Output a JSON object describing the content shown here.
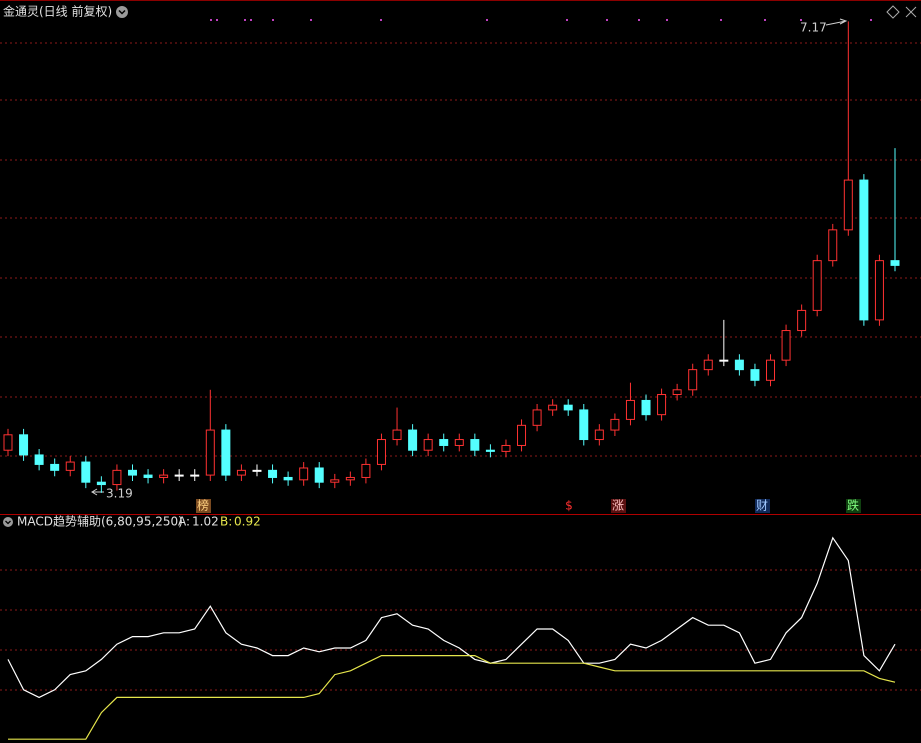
{
  "chart_data": [
    {
      "type": "candlestick",
      "title": "金通灵(日线 前复权)",
      "open": [
        3.55,
        3.68,
        3.51,
        3.43,
        3.38,
        3.45,
        3.28,
        3.26,
        3.38,
        3.34,
        3.32,
        3.34,
        3.34,
        3.34,
        3.72,
        3.34,
        3.38,
        3.38,
        3.32,
        3.3,
        3.4,
        3.28,
        3.3,
        3.32,
        3.43,
        3.64,
        3.72,
        3.55,
        3.64,
        3.59,
        3.64,
        3.55,
        3.54,
        3.59,
        3.76,
        3.89,
        3.93,
        3.89,
        3.64,
        3.72,
        3.81,
        3.97,
        3.85,
        4.02,
        4.06,
        4.23,
        4.31,
        4.31,
        4.23,
        4.14,
        4.31,
        4.56,
        4.73,
        5.15,
        5.41,
        5.83,
        4.65,
        5.15
      ],
      "high": [
        3.73,
        3.73,
        3.56,
        3.48,
        3.5,
        3.5,
        3.33,
        3.43,
        3.43,
        3.39,
        3.39,
        3.39,
        3.39,
        4.06,
        3.77,
        3.43,
        3.43,
        3.43,
        3.37,
        3.45,
        3.45,
        3.35,
        3.37,
        3.48,
        3.69,
        3.91,
        3.77,
        3.69,
        3.69,
        3.69,
        3.69,
        3.6,
        3.64,
        3.81,
        3.94,
        3.98,
        3.98,
        3.94,
        3.77,
        3.86,
        4.12,
        4.02,
        4.07,
        4.11,
        4.28,
        4.36,
        4.65,
        4.36,
        4.28,
        4.36,
        4.61,
        4.78,
        5.2,
        5.46,
        7.17,
        5.88,
        5.2,
        6.1
      ],
      "low": [
        3.5,
        3.46,
        3.38,
        3.33,
        3.33,
        3.23,
        3.19,
        3.21,
        3.29,
        3.27,
        3.27,
        3.29,
        3.29,
        3.29,
        3.29,
        3.29,
        3.33,
        3.27,
        3.25,
        3.25,
        3.23,
        3.23,
        3.25,
        3.27,
        3.38,
        3.59,
        3.5,
        3.5,
        3.54,
        3.54,
        3.5,
        3.49,
        3.49,
        3.54,
        3.71,
        3.84,
        3.84,
        3.59,
        3.59,
        3.67,
        3.76,
        3.8,
        3.8,
        3.97,
        4.01,
        4.18,
        4.26,
        4.18,
        4.09,
        4.09,
        4.26,
        4.51,
        4.68,
        5.1,
        5.36,
        4.6,
        4.6,
        5.06
      ],
      "close": [
        3.68,
        3.51,
        3.43,
        3.38,
        3.45,
        3.28,
        3.26,
        3.38,
        3.34,
        3.32,
        3.34,
        3.34,
        3.34,
        3.72,
        3.34,
        3.38,
        3.38,
        3.32,
        3.3,
        3.4,
        3.28,
        3.3,
        3.32,
        3.43,
        3.64,
        3.72,
        3.55,
        3.64,
        3.59,
        3.64,
        3.55,
        3.54,
        3.59,
        3.76,
        3.89,
        3.93,
        3.89,
        3.64,
        3.72,
        3.81,
        3.97,
        3.85,
        4.02,
        4.06,
        4.23,
        4.31,
        4.31,
        4.23,
        4.14,
        4.31,
        4.56,
        4.73,
        5.15,
        5.41,
        5.83,
        4.65,
        5.15,
        5.11
      ],
      "ylim": [
        3.02,
        7.35
      ],
      "grid": true,
      "up_color": "#ff3232",
      "down_color": "#54ffff",
      "signals": [
        "榜",
        "$",
        "涨",
        "财",
        "跌"
      ]
    },
    {
      "type": "line",
      "title": "MACD趋势辅助(6,80,95,250)",
      "series": [
        {
          "name": "A:",
          "color": "#ffffff",
          "values": [
            0.98,
            0.9,
            0.88,
            0.9,
            0.94,
            0.95,
            0.98,
            1.02,
            1.04,
            1.04,
            1.05,
            1.05,
            1.06,
            1.12,
            1.05,
            1.02,
            1.01,
            0.99,
            0.99,
            1.01,
            1.0,
            1.01,
            1.01,
            1.03,
            1.09,
            1.1,
            1.07,
            1.06,
            1.03,
            1.01,
            0.98,
            0.97,
            0.98,
            1.02,
            1.06,
            1.06,
            1.03,
            0.97,
            0.97,
            0.98,
            1.02,
            1.01,
            1.03,
            1.06,
            1.09,
            1.07,
            1.07,
            1.05,
            0.97,
            0.98,
            1.05,
            1.09,
            1.18,
            1.3,
            1.24,
            0.99,
            0.95,
            1.02
          ]
        },
        {
          "name": "B:",
          "color": "#e5e54c",
          "values": [
            0.77,
            0.77,
            0.77,
            0.77,
            0.77,
            0.77,
            0.84,
            0.88,
            0.88,
            0.88,
            0.88,
            0.88,
            0.88,
            0.88,
            0.88,
            0.88,
            0.88,
            0.88,
            0.88,
            0.88,
            0.89,
            0.94,
            0.95,
            0.97,
            0.99,
            0.99,
            0.99,
            0.99,
            0.99,
            0.99,
            0.99,
            0.97,
            0.97,
            0.97,
            0.97,
            0.97,
            0.97,
            0.97,
            0.96,
            0.95,
            0.95,
            0.95,
            0.95,
            0.95,
            0.95,
            0.95,
            0.95,
            0.95,
            0.95,
            0.95,
            0.95,
            0.95,
            0.95,
            0.95,
            0.95,
            0.95,
            0.93,
            0.92
          ]
        }
      ],
      "ylim": [
        0.76,
        1.36
      ],
      "grid": true
    }
  ]
}
